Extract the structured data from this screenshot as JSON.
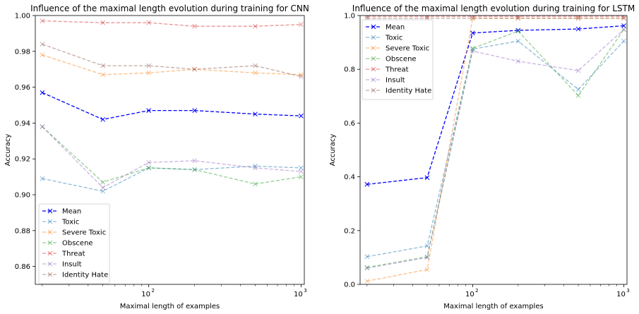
{
  "chart_data": [
    {
      "type": "line",
      "title": "Influence of the maximal length evolution during training for CNN",
      "xlabel": "Maximal length of examples",
      "ylabel": "Accuracy",
      "xscale": "log",
      "x": [
        20,
        50,
        100,
        200,
        500,
        1000
      ],
      "xlim": [
        18,
        1050
      ],
      "ylim": [
        0.85,
        1.0
      ],
      "yticks": [
        "0.86",
        "0.88",
        "0.90",
        "0.92",
        "0.94",
        "0.96",
        "0.98",
        "1.00"
      ],
      "xticks": [
        {
          "value": 100,
          "label": "10",
          "exp": "2"
        },
        {
          "value": 1000,
          "label": "10",
          "exp": "3"
        }
      ],
      "grid": false,
      "legend_position": "lower-left",
      "series": [
        {
          "name": "Mean",
          "color": "#0000ff",
          "alpha": 1.0,
          "values": [
            0.957,
            0.942,
            0.947,
            0.947,
            0.945,
            0.944
          ]
        },
        {
          "name": "Toxic",
          "color": "#1f77b4",
          "alpha": 0.5,
          "values": [
            0.909,
            0.902,
            0.915,
            0.914,
            0.916,
            0.915
          ]
        },
        {
          "name": "Severe Toxic",
          "color": "#ff7f0e",
          "alpha": 0.5,
          "values": [
            0.978,
            0.967,
            0.968,
            0.97,
            0.968,
            0.967
          ]
        },
        {
          "name": "Obscene",
          "color": "#2ca02c",
          "alpha": 0.5,
          "values": [
            0.938,
            0.907,
            0.915,
            0.914,
            0.906,
            0.91
          ]
        },
        {
          "name": "Threat",
          "color": "#d62728",
          "alpha": 0.5,
          "values": [
            0.997,
            0.996,
            0.996,
            0.994,
            0.994,
            0.995
          ]
        },
        {
          "name": "Insult",
          "color": "#9467bd",
          "alpha": 0.5,
          "values": [
            0.938,
            0.904,
            0.918,
            0.919,
            0.915,
            0.913
          ]
        },
        {
          "name": "Identity Hate",
          "color": "#8c564b",
          "alpha": 0.5,
          "values": [
            0.984,
            0.972,
            0.972,
            0.97,
            0.972,
            0.966
          ]
        }
      ]
    },
    {
      "type": "line",
      "title": "Influence of the maximal length evolution during training for LSTM",
      "xlabel": "Maximal length of examples",
      "ylabel": "Accuracy",
      "xscale": "log",
      "x": [
        20,
        50,
        100,
        200,
        500,
        1000
      ],
      "xlim": [
        18,
        1050
      ],
      "ylim": [
        0.0,
        1.0
      ],
      "yticks": [
        "0.0",
        "0.2",
        "0.4",
        "0.6",
        "0.8",
        "1.0"
      ],
      "xticks": [
        {
          "value": 100,
          "label": "10",
          "exp": "2"
        },
        {
          "value": 1000,
          "label": "10",
          "exp": "3"
        }
      ],
      "grid": false,
      "legend_position": "upper-left",
      "series": [
        {
          "name": "Mean",
          "color": "#0000ff",
          "alpha": 1.0,
          "values": [
            0.372,
            0.397,
            0.935,
            0.945,
            0.95,
            0.962
          ]
        },
        {
          "name": "Toxic",
          "color": "#1f77b4",
          "alpha": 0.5,
          "values": [
            0.103,
            0.143,
            0.875,
            0.905,
            0.725,
            0.905
          ]
        },
        {
          "name": "Severe Toxic",
          "color": "#ff7f0e",
          "alpha": 0.5,
          "values": [
            0.012,
            0.055,
            0.99,
            0.99,
            0.99,
            0.99
          ]
        },
        {
          "name": "Obscene",
          "color": "#2ca02c",
          "alpha": 0.5,
          "values": [
            0.063,
            0.103,
            0.878,
            0.942,
            0.702,
            0.948
          ]
        },
        {
          "name": "Threat",
          "color": "#d62728",
          "alpha": 0.5,
          "values": [
            0.997,
            0.997,
            0.997,
            0.997,
            0.997,
            0.997
          ]
        },
        {
          "name": "Insult",
          "color": "#9467bd",
          "alpha": 0.5,
          "values": [
            0.06,
            0.1,
            0.868,
            0.83,
            0.795,
            0.948
          ]
        },
        {
          "name": "Identity Hate",
          "color": "#8c564b",
          "alpha": 0.5,
          "values": [
            0.99,
            0.99,
            0.99,
            0.99,
            0.99,
            0.99
          ]
        }
      ]
    }
  ]
}
